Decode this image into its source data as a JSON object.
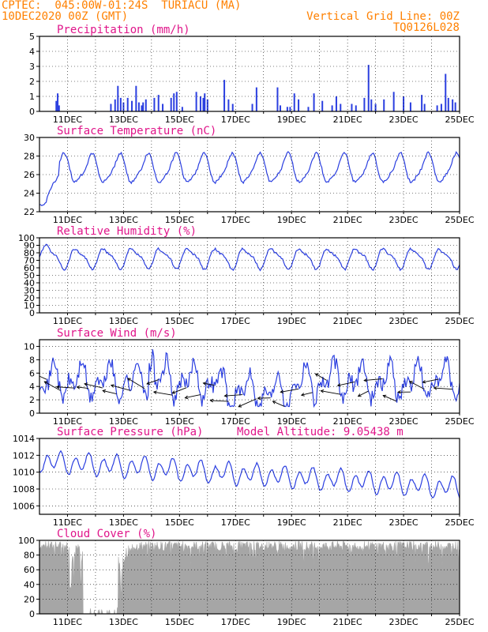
{
  "header": {
    "left_line1": "CPTEC:  045:00W-01:24S  TURIACU (MA)",
    "left_line2": "10DEC2020 00Z (GMT)",
    "right_line1": "Vertical Grid Line: 00Z",
    "right_line2": "TQ0126L028"
  },
  "colors": {
    "line": "#2b3fe0",
    "title": "#e0158a",
    "header": "#ff8000",
    "cloud": "#a6a6a6",
    "wind_arrow": "#000000"
  },
  "x_axis": {
    "start_day": 10,
    "end_day": 25,
    "tick_labels": [
      "11DEC",
      "13DEC",
      "15DEC",
      "17DEC",
      "19DEC",
      "21DEC",
      "23DEC",
      "25DEC"
    ]
  },
  "panels": [
    {
      "id": "precipitation",
      "title": "Precipitation (mm/h)",
      "chart_data": {
        "type": "bar",
        "ylim": [
          0,
          5
        ],
        "yticks": [
          0,
          1,
          2,
          3,
          4,
          5
        ],
        "bars": [
          [
            10.6,
            0.7
          ],
          [
            10.65,
            1.2
          ],
          [
            10.7,
            0.4
          ],
          [
            12.55,
            0.5
          ],
          [
            12.7,
            0.8
          ],
          [
            12.8,
            1.7
          ],
          [
            12.9,
            0.9
          ],
          [
            13.0,
            0.6
          ],
          [
            13.15,
            0.9
          ],
          [
            13.3,
            0.7
          ],
          [
            13.45,
            1.7
          ],
          [
            13.55,
            0.6
          ],
          [
            13.65,
            0.4
          ],
          [
            13.7,
            0.6
          ],
          [
            13.8,
            0.8
          ],
          [
            14.1,
            0.9
          ],
          [
            14.25,
            1.1
          ],
          [
            14.4,
            0.5
          ],
          [
            14.7,
            0.9
          ],
          [
            14.8,
            1.2
          ],
          [
            14.9,
            1.3
          ],
          [
            15.1,
            0.3
          ],
          [
            15.6,
            1.3
          ],
          [
            15.75,
            1.0
          ],
          [
            15.85,
            0.9
          ],
          [
            15.9,
            1.2
          ],
          [
            16.0,
            0.8
          ],
          [
            16.6,
            2.1
          ],
          [
            16.75,
            0.8
          ],
          [
            16.9,
            0.5
          ],
          [
            17.6,
            0.5
          ],
          [
            17.75,
            1.6
          ],
          [
            18.5,
            1.6
          ],
          [
            18.6,
            0.4
          ],
          [
            18.85,
            0.3
          ],
          [
            18.95,
            0.3
          ],
          [
            19.1,
            1.2
          ],
          [
            19.25,
            0.8
          ],
          [
            19.6,
            0.3
          ],
          [
            19.8,
            1.2
          ],
          [
            20.1,
            0.7
          ],
          [
            20.45,
            0.4
          ],
          [
            20.6,
            1.0
          ],
          [
            20.75,
            0.5
          ],
          [
            21.15,
            0.5
          ],
          [
            21.3,
            0.4
          ],
          [
            21.6,
            0.9
          ],
          [
            21.75,
            3.1
          ],
          [
            21.85,
            0.8
          ],
          [
            22.0,
            0.5
          ],
          [
            22.3,
            0.8
          ],
          [
            22.65,
            1.3
          ],
          [
            23.0,
            1.0
          ],
          [
            23.25,
            0.6
          ],
          [
            23.65,
            1.1
          ],
          [
            23.75,
            0.5
          ],
          [
            24.2,
            0.4
          ],
          [
            24.35,
            0.5
          ],
          [
            24.5,
            2.5
          ],
          [
            24.6,
            0.9
          ],
          [
            24.75,
            0.8
          ],
          [
            24.85,
            0.6
          ]
        ]
      }
    },
    {
      "id": "temperature",
      "title": "Surface Temperature (nC)",
      "chart_data": {
        "type": "line",
        "ylim": [
          22,
          30
        ],
        "yticks": [
          22,
          24,
          26,
          28,
          30
        ]
      }
    },
    {
      "id": "humidity",
      "title": "Relative Humidity (%)",
      "chart_data": {
        "type": "line",
        "ylim": [
          0,
          100
        ],
        "yticks": [
          0,
          10,
          20,
          30,
          40,
          50,
          60,
          70,
          80,
          90,
          100
        ]
      }
    },
    {
      "id": "wind",
      "title": "Surface Wind (m/s)",
      "chart_data": {
        "type": "line",
        "ylim": [
          0,
          11
        ],
        "yticks": [
          0,
          2,
          4,
          6,
          8,
          10
        ]
      }
    },
    {
      "id": "pressure",
      "title": "Surface Pressure (hPa)",
      "extra_label": "Model Altitude: 9.05438 m",
      "chart_data": {
        "type": "line",
        "ylim": [
          1005,
          1014
        ],
        "yticks": [
          1006,
          1008,
          1010,
          1012,
          1014
        ]
      }
    },
    {
      "id": "cloud",
      "title": "Cloud Cover (%)",
      "chart_data": {
        "type": "area",
        "ylim": [
          0,
          100
        ],
        "yticks": [
          0,
          20,
          40,
          60,
          80,
          100
        ],
        "clear_intervals": [
          [
            11.55,
            12.8
          ]
        ],
        "partial_intervals": [
          [
            11.0,
            11.55,
            70
          ],
          [
            12.8,
            13.1,
            55
          ]
        ]
      }
    }
  ]
}
